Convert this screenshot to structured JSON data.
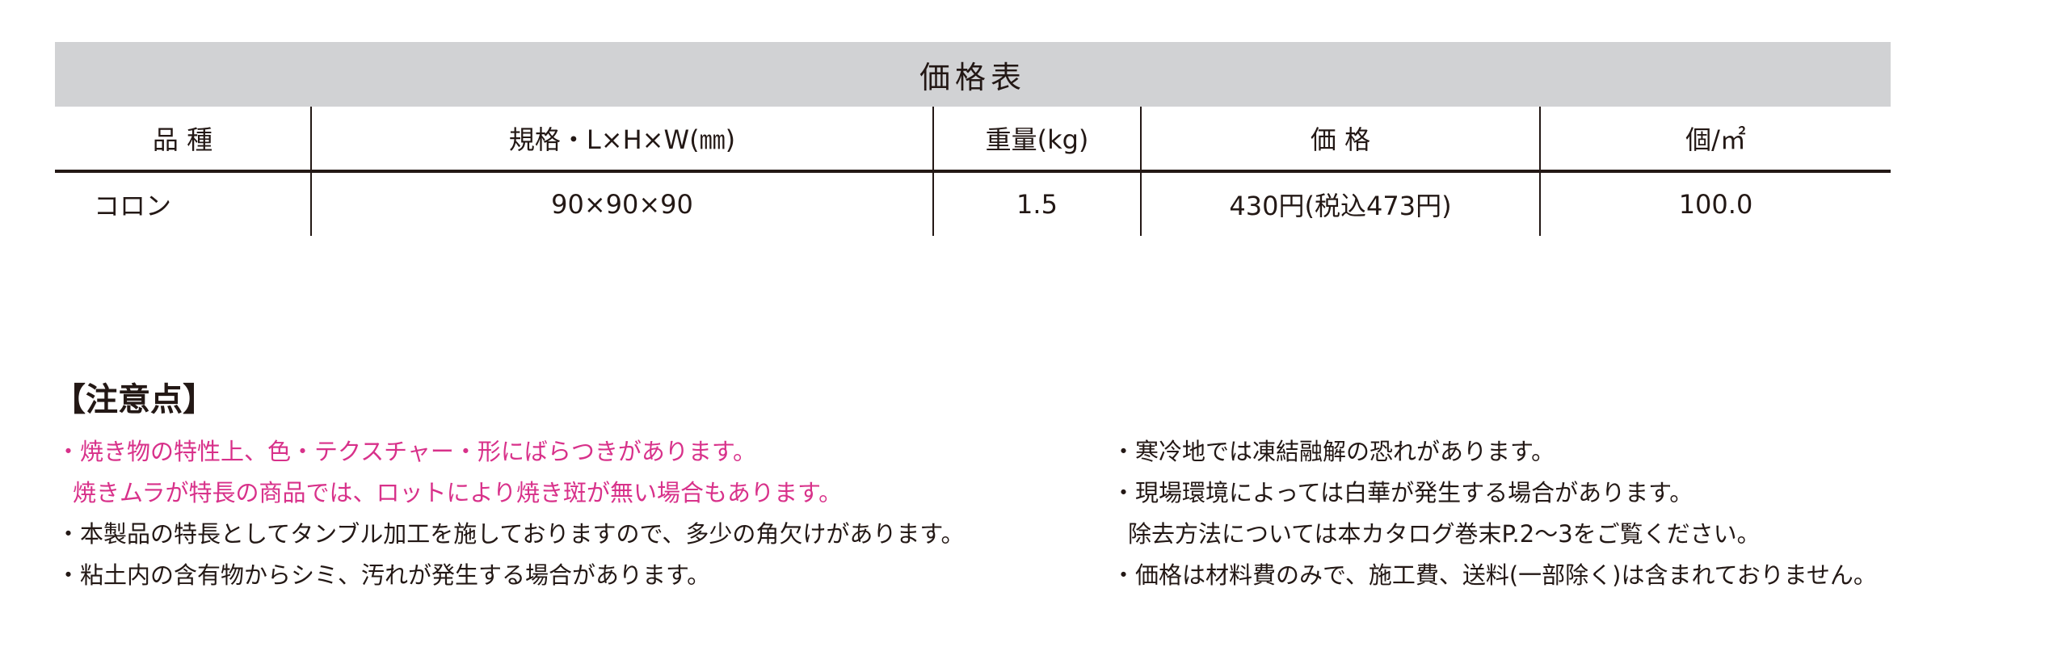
{
  "table": {
    "title": "価格表",
    "headers": [
      "品 種",
      "規格・L×H×W(㎜)",
      "重量(kg)",
      "価 格",
      "個/㎡"
    ],
    "rows": [
      {
        "name": "コロン",
        "size": "90×90×90",
        "weight": "1.5",
        "price": "430円(税込473円)",
        "per_m2": "100.0"
      }
    ]
  },
  "notes": {
    "title": "【注意点】",
    "highlight_color": "#d8318a",
    "left": [
      "・焼き物の特性上、色・テクスチャー・形にばらつきがあります。",
      "焼きムラが特長の商品では、ロットにより焼き斑が無い場合もあります。",
      "・本製品の特長としてタンブル加工を施しておりますので、多少の角欠けがあります。",
      "・粘土内の含有物からシミ、汚れが発生する場合があります。"
    ],
    "right": [
      "・寒冷地では凍結融解の恐れがあります。",
      "・現場環境によっては白華が発生する場合があります。",
      "除去方法については本カタログ巻末P.2～3をご覧ください。",
      "・価格は材料費のみで、施工費、送料(一部除く)は含まれておりません。"
    ]
  }
}
